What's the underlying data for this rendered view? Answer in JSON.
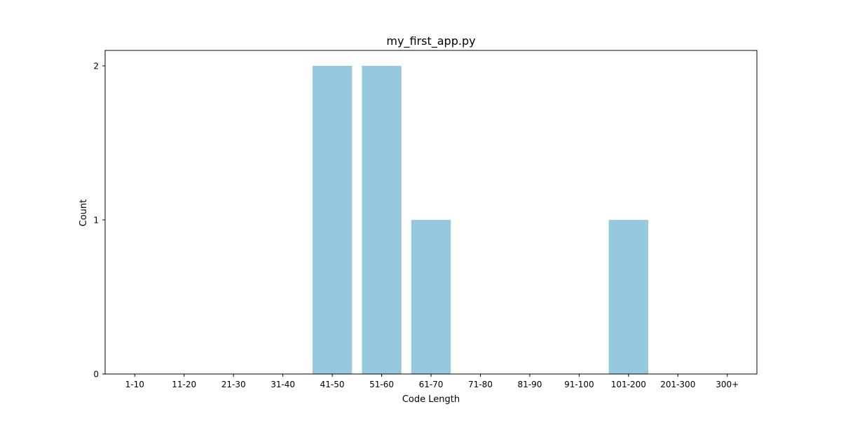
{
  "chart_data": {
    "type": "bar",
    "title": "my_first_app.py",
    "xlabel": "Code Length",
    "ylabel": "Count",
    "categories": [
      "1-10",
      "11-20",
      "21-30",
      "31-40",
      "41-50",
      "51-60",
      "61-70",
      "71-80",
      "81-90",
      "91-100",
      "101-200",
      "201-300",
      "300+"
    ],
    "values": [
      0,
      0,
      0,
      0,
      2,
      2,
      1,
      0,
      0,
      0,
      1,
      0,
      0
    ],
    "ylim": [
      0,
      2.1
    ],
    "yticks": [
      0,
      1,
      2
    ],
    "grid": false,
    "legend": "none",
    "bar_color": "#96c9dd"
  }
}
